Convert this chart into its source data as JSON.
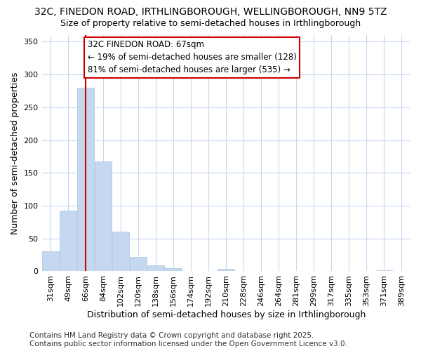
{
  "title": "32C, FINEDON ROAD, IRTHLINGBOROUGH, WELLINGBOROUGH, NN9 5TZ",
  "subtitle": "Size of property relative to semi-detached houses in Irthlingborough",
  "xlabel": "Distribution of semi-detached houses by size in Irthlingborough",
  "ylabel": "Number of semi-detached properties",
  "categories": [
    "31sqm",
    "49sqm",
    "66sqm",
    "84sqm",
    "102sqm",
    "120sqm",
    "138sqm",
    "156sqm",
    "174sqm",
    "192sqm",
    "210sqm",
    "228sqm",
    "246sqm",
    "264sqm",
    "281sqm",
    "299sqm",
    "317sqm",
    "335sqm",
    "353sqm",
    "371sqm",
    "389sqm"
  ],
  "values": [
    30,
    93,
    280,
    167,
    60,
    22,
    9,
    5,
    0,
    0,
    4,
    0,
    0,
    0,
    0,
    0,
    0,
    0,
    0,
    2,
    1
  ],
  "bar_color": "#c5d8f0",
  "bar_edge_color": "#aac4e0",
  "property_line_x": 2.0,
  "annotation_text_line1": "32C FINEDON ROAD: 67sqm",
  "annotation_text_line2": "← 19% of semi-detached houses are smaller (128)",
  "annotation_text_line3": "81% of semi-detached houses are larger (535) →",
  "box_color": "#cc0000",
  "vline_color": "#cc0000",
  "ylim": [
    0,
    360
  ],
  "yticks": [
    0,
    50,
    100,
    150,
    200,
    250,
    300,
    350
  ],
  "background_color": "#ffffff",
  "plot_bg_color": "#ffffff",
  "grid_color": "#c8d8f0",
  "footer_line1": "Contains HM Land Registry data © Crown copyright and database right 2025.",
  "footer_line2": "Contains public sector information licensed under the Open Government Licence v3.0.",
  "title_fontsize": 10,
  "subtitle_fontsize": 9,
  "axis_label_fontsize": 9,
  "tick_fontsize": 8,
  "annotation_fontsize": 8.5,
  "footer_fontsize": 7.5
}
